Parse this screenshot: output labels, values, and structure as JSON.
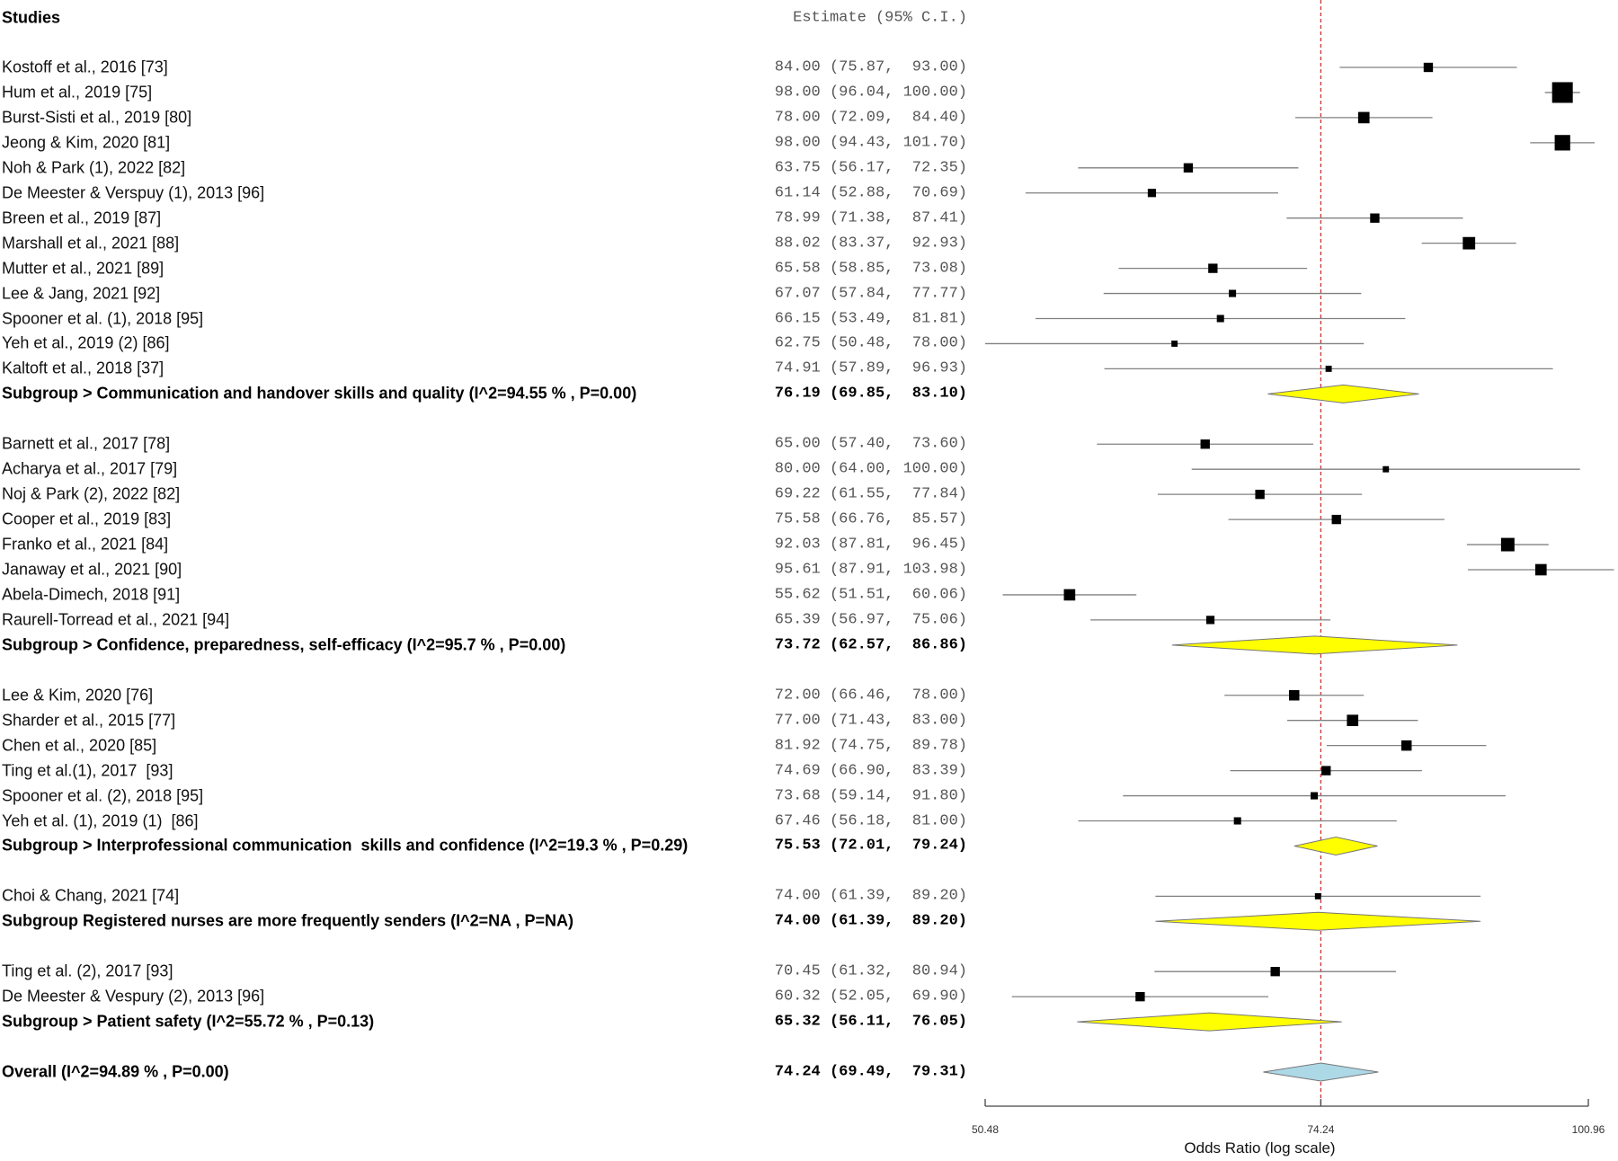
{
  "header": {
    "studies_label": "Studies",
    "estimate_label": "Estimate (95% C.I.)"
  },
  "colors": {
    "subgroup_diamond": "#ffff00",
    "overall_diamond": "#add8e6",
    "reference_line": "#cc3333",
    "box": "#000000",
    "ci_line": "#808080"
  },
  "chart_data": {
    "type": "forest",
    "xlabel": "Odds Ratio (log scale)",
    "xscale": "log",
    "xlim": [
      50.48,
      100.96
    ],
    "xticks": [
      "50.48",
      "74.24",
      "100.96"
    ],
    "xtick_values": [
      50.48,
      74.24,
      100.96
    ],
    "reference_value": 74.24,
    "rows": [
      {
        "kind": "study",
        "label": "Kostoff et al., 2016 [73]",
        "est": 84.0,
        "lo": 75.87,
        "hi": 93.0,
        "text": "84.00 (75.87,  93.00)",
        "weight": 9
      },
      {
        "kind": "study",
        "label": "Hum et al., 2019 [75]",
        "est": 98.0,
        "lo": 96.04,
        "hi": 100.0,
        "text": "98.00 (96.04, 100.00)",
        "weight": 20
      },
      {
        "kind": "study",
        "label": "Burst-Sisti et al., 2019 [80]",
        "est": 78.0,
        "lo": 72.09,
        "hi": 84.4,
        "text": "78.00 (72.09,  84.40)",
        "weight": 11
      },
      {
        "kind": "study",
        "label": "Jeong & Kim, 2020 [81]",
        "est": 98.0,
        "lo": 94.43,
        "hi": 101.7,
        "text": "98.00 (94.43, 101.70)",
        "weight": 15
      },
      {
        "kind": "study",
        "label": "Noh & Park (1), 2022 [82]",
        "est": 63.75,
        "lo": 56.17,
        "hi": 72.35,
        "text": "63.75 (56.17,  72.35)",
        "weight": 9
      },
      {
        "kind": "study",
        "label": "De Meester & Verspuy (1), 2013 [96]",
        "est": 61.14,
        "lo": 52.88,
        "hi": 70.69,
        "text": "61.14 (52.88,  70.69)",
        "weight": 8
      },
      {
        "kind": "study",
        "label": "Breen et al., 2019 [87]",
        "est": 78.99,
        "lo": 71.38,
        "hi": 87.41,
        "text": "78.99 (71.38,  87.41)",
        "weight": 9
      },
      {
        "kind": "study",
        "label": "Marshall et al., 2021 [88]",
        "est": 88.02,
        "lo": 83.37,
        "hi": 92.93,
        "text": "88.02 (83.37,  92.93)",
        "weight": 12
      },
      {
        "kind": "study",
        "label": "Mutter et al., 2021 [89]",
        "est": 65.58,
        "lo": 58.85,
        "hi": 73.08,
        "text": "65.58 (58.85,  73.08)",
        "weight": 9
      },
      {
        "kind": "study",
        "label": "Lee & Jang, 2021 [92]",
        "est": 67.07,
        "lo": 57.84,
        "hi": 77.77,
        "text": "67.07 (57.84,  77.77)",
        "weight": 7
      },
      {
        "kind": "study",
        "label": "Spooner et al. (1), 2018 [95]",
        "est": 66.15,
        "lo": 53.49,
        "hi": 81.81,
        "text": "66.15 (53.49,  81.81)",
        "weight": 7
      },
      {
        "kind": "study",
        "label": "Yeh et al., 2019 (2) [86]",
        "est": 62.75,
        "lo": 50.48,
        "hi": 78.0,
        "text": "62.75 (50.48,  78.00)",
        "weight": 6
      },
      {
        "kind": "study",
        "label": "Kaltoft et al., 2018 [37]",
        "est": 74.91,
        "lo": 57.89,
        "hi": 96.93,
        "text": "74.91 (57.89,  96.93)",
        "weight": 6
      },
      {
        "kind": "subgroup",
        "label": "Subgroup > Communication and handover skills and quality (I^2=94.55 % , P=0.00)",
        "est": 76.19,
        "lo": 69.85,
        "hi": 83.1,
        "text": "76.19 (69.85,  83.10)"
      },
      {
        "kind": "blank"
      },
      {
        "kind": "study",
        "label": "Barnett et al., 2017 [78]",
        "est": 65.0,
        "lo": 57.4,
        "hi": 73.6,
        "text": "65.00 (57.40,  73.60)",
        "weight": 9
      },
      {
        "kind": "study",
        "label": "Acharya et al., 2017 [79]",
        "est": 80.0,
        "lo": 64.0,
        "hi": 100.0,
        "text": "80.00 (64.00, 100.00)",
        "weight": 6
      },
      {
        "kind": "study",
        "label": "Noj & Park (2), 2022 [82]",
        "est": 69.22,
        "lo": 61.55,
        "hi": 77.84,
        "text": "69.22 (61.55,  77.84)",
        "weight": 9
      },
      {
        "kind": "study",
        "label": "Cooper et al., 2019 [83]",
        "est": 75.58,
        "lo": 66.76,
        "hi": 85.57,
        "text": "75.58 (66.76,  85.57)",
        "weight": 9
      },
      {
        "kind": "study",
        "label": "Franko et al., 2021 [84]",
        "est": 92.03,
        "lo": 87.81,
        "hi": 96.45,
        "text": "92.03 (87.81,  96.45)",
        "weight": 13
      },
      {
        "kind": "study",
        "label": "Janaway et al., 2021 [90]",
        "est": 95.61,
        "lo": 87.91,
        "hi": 103.98,
        "text": "95.61 (87.91, 103.98)",
        "weight": 11
      },
      {
        "kind": "study",
        "label": "Abela-Dimech, 2018 [91]",
        "est": 55.62,
        "lo": 51.51,
        "hi": 60.06,
        "text": "55.62 (51.51,  60.06)",
        "weight": 11
      },
      {
        "kind": "study",
        "label": "Raurell-Torread et al., 2021 [94]",
        "est": 65.39,
        "lo": 56.97,
        "hi": 75.06,
        "text": "65.39 (56.97,  75.06)",
        "weight": 8
      },
      {
        "kind": "subgroup",
        "label": "Subgroup > Confidence, preparedness, self-efficacy (I^2=95.7 % , P=0.00)",
        "est": 73.72,
        "lo": 62.57,
        "hi": 86.86,
        "text": "73.72 (62.57,  86.86)"
      },
      {
        "kind": "blank"
      },
      {
        "kind": "study",
        "label": "Lee & Kim, 2020 [76]",
        "est": 72.0,
        "lo": 66.46,
        "hi": 78.0,
        "text": "72.00 (66.46,  78.00)",
        "weight": 10
      },
      {
        "kind": "study",
        "label": "Sharder et al., 2015 [77]",
        "est": 77.0,
        "lo": 71.43,
        "hi": 83.0,
        "text": "77.00 (71.43,  83.00)",
        "weight": 11
      },
      {
        "kind": "study",
        "label": "Chen et al., 2020 [85]",
        "est": 81.92,
        "lo": 74.75,
        "hi": 89.78,
        "text": "81.92 (74.75,  89.78)",
        "weight": 10
      },
      {
        "kind": "study",
        "label": "Ting et al.(1), 2017  [93]",
        "est": 74.69,
        "lo": 66.9,
        "hi": 83.39,
        "text": "74.69 (66.90,  83.39)",
        "weight": 9
      },
      {
        "kind": "study",
        "label": "Spooner et al. (2), 2018 [95]",
        "est": 73.68,
        "lo": 59.14,
        "hi": 91.8,
        "text": "73.68 (59.14,  91.80)",
        "weight": 7
      },
      {
        "kind": "study",
        "label": "Yeh et al. (1), 2019 (1)  [86]",
        "est": 67.46,
        "lo": 56.18,
        "hi": 81.0,
        "text": "67.46 (56.18,  81.00)",
        "weight": 7
      },
      {
        "kind": "subgroup",
        "label": "Subgroup > Interprofessional communication  skills and confidence (I^2=19.3 % , P=0.29)",
        "est": 75.53,
        "lo": 72.01,
        "hi": 79.24,
        "text": "75.53 (72.01,  79.24)"
      },
      {
        "kind": "blank"
      },
      {
        "kind": "study",
        "label": "Choi & Chang, 2021 [74]",
        "est": 74.0,
        "lo": 61.39,
        "hi": 89.2,
        "text": "74.00 (61.39,  89.20)",
        "weight": 6
      },
      {
        "kind": "subgroup",
        "label": "Subgroup Registered nurses are more frequently senders (I^2=NA , P=NA)",
        "est": 74.0,
        "lo": 61.39,
        "hi": 89.2,
        "text": "74.00 (61.39,  89.20)"
      },
      {
        "kind": "blank"
      },
      {
        "kind": "study",
        "label": "Ting et al. (2), 2017 [93]",
        "est": 70.45,
        "lo": 61.32,
        "hi": 80.94,
        "text": "70.45 (61.32,  80.94)",
        "weight": 9
      },
      {
        "kind": "study",
        "label": "De Meester & Vespury (2), 2013 [96]",
        "est": 60.32,
        "lo": 52.05,
        "hi": 69.9,
        "text": "60.32 (52.05,  69.90)",
        "weight": 9
      },
      {
        "kind": "subgroup",
        "label": "Subgroup > Patient safety (I^2=55.72 % , P=0.13)",
        "est": 65.32,
        "lo": 56.11,
        "hi": 76.05,
        "text": "65.32 (56.11,  76.05)"
      },
      {
        "kind": "blank"
      },
      {
        "kind": "overall",
        "label": "Overall (I^2=94.89 % , P=0.00)",
        "est": 74.24,
        "lo": 69.49,
        "hi": 79.31,
        "text": "74.24 (69.49,  79.31)"
      }
    ]
  }
}
